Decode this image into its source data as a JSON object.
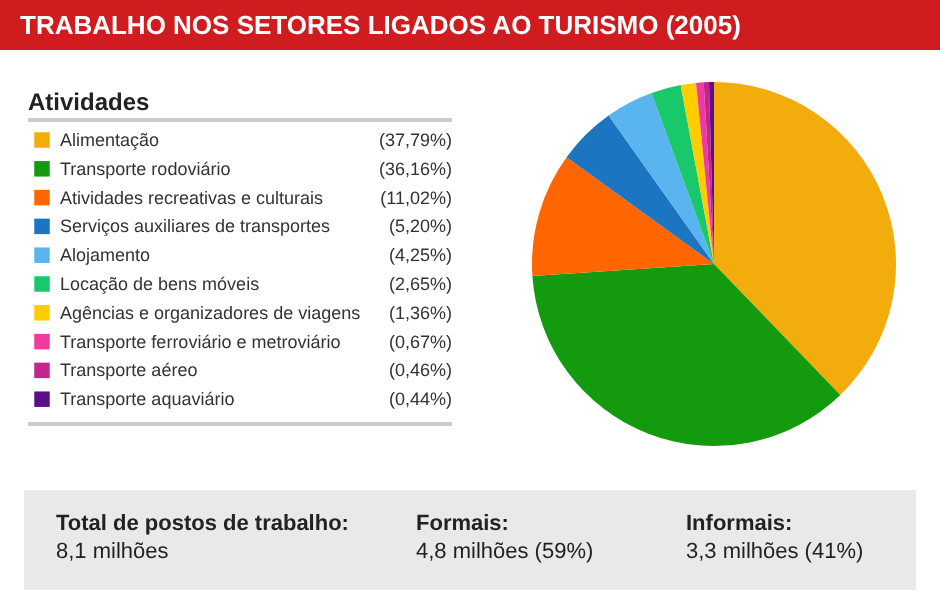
{
  "chart_data": {
    "type": "pie",
    "title": "TRABALHO NOS SETORES LIGADOS AO TURISMO (2005)",
    "legend_title": "Atividades",
    "legend": "left",
    "categories": [
      "Alimentação",
      "Transporte rodoviário",
      "Atividades recreativas e culturais",
      "Serviços auxiliares de transportes",
      "Alojamento",
      "Locação de bens móveis",
      "Agências e organizadores de viagens",
      "Transporte ferroviário e metroviário",
      "Transporte aéreo",
      "Transporte aquaviário"
    ],
    "values": [
      37.79,
      36.16,
      11.02,
      5.2,
      4.25,
      2.65,
      1.36,
      0.67,
      0.46,
      0.44
    ],
    "value_labels": [
      "(37,79%)",
      "(36,16%)",
      "(11,02%)",
      "(5,20%)",
      "(4,25%)",
      "(2,65%)",
      "(1,36%)",
      "(0,67%)",
      "(0,46%)",
      "(0,44%)"
    ],
    "colors": [
      "#f2ad0c",
      "#139a0e",
      "#ff6600",
      "#1c75c1",
      "#5ab4ef",
      "#19c86b",
      "#ffcc00",
      "#ee3ba0",
      "#c5248e",
      "#5c0f8b"
    ],
    "annotations": [
      "Total de postos de trabalho:",
      "8,1 milhões",
      "Formais:",
      "4,8 milhões (59%)",
      "Informais:",
      "3,3 milhões (41%)"
    ]
  }
}
